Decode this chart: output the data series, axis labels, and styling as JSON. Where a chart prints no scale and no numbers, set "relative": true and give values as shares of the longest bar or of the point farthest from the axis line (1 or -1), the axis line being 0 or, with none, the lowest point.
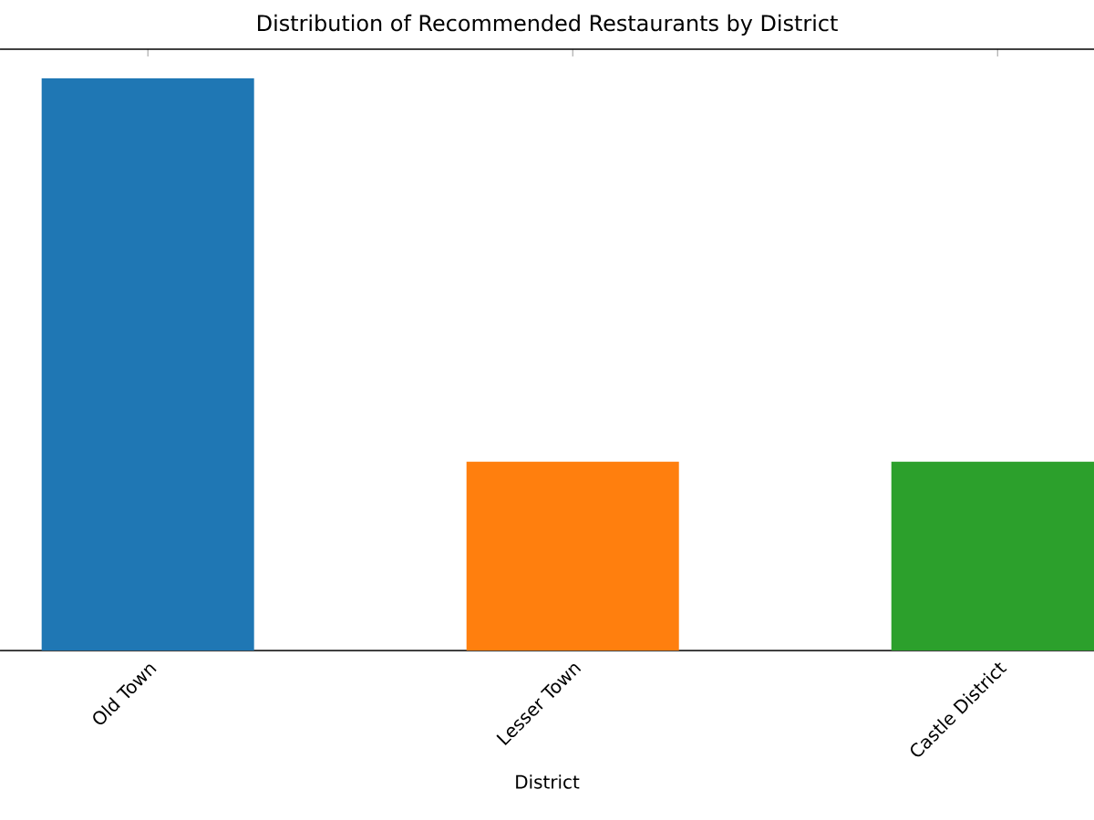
{
  "chart_data": {
    "type": "bar",
    "title": "Distribution of Recommended Restaurants by District",
    "xlabel": "District",
    "categories": [
      "Old Town",
      "Lesser Town",
      "Castle District"
    ],
    "values": [
      1,
      0.33,
      0.33
    ],
    "colors": [
      "#1f77b4",
      "#ff7f0e",
      "#2ca02c"
    ],
    "relative": true
  }
}
